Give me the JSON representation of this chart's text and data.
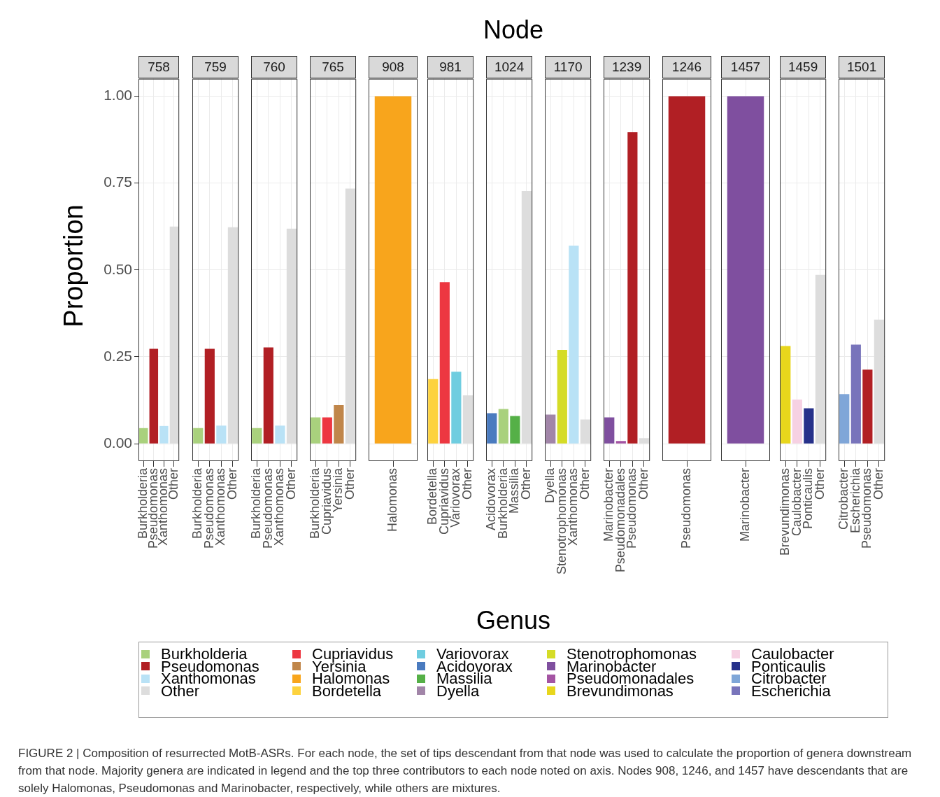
{
  "chart_data": [
    {
      "type": "bar",
      "title": "758",
      "annotations": [
        "Node",
        "FIGURE 2 | Composition of resurrected MotB-ASRs. For each node, the set of tips descendant from that node was used to calculate the proportion of genera downstream from that node. Majority genera are indicated in legend and the top three contributors to each node noted on axis. Nodes 908, 1246, and 1457 have descendants that are solely Halomonas, Pseudomonas and Marinobacter, respectively, while others are mixtures."
      ],
      "ylabel": "Proportion",
      "legend": "bottom",
      "legend_title": "Genus",
      "grid": true,
      "ylim": [
        -0.05,
        1.05
      ],
      "yticks": [
        {
          "value": 0,
          "label": "0.00"
        },
        {
          "value": 0.25,
          "label": "0.25"
        },
        {
          "value": 0.5,
          "label": "0.50"
        },
        {
          "value": 0.75,
          "label": "0.75"
        },
        {
          "value": 1,
          "label": "1.00"
        }
      ],
      "categories": [
        "Burkholderia",
        "Pseudomonas",
        "Xanthomonas",
        "Other"
      ],
      "series": [
        {
          "name": "Burkholderia",
          "color": "#a9d17d",
          "values": [
            0.045,
            null,
            null,
            null
          ]
        },
        {
          "name": "Pseudomonas",
          "color": "#b11f24",
          "values": [
            null,
            0.273,
            null,
            null
          ]
        },
        {
          "name": "Xanthomonas",
          "color": "#b9e2f6",
          "values": [
            null,
            null,
            0.051,
            null
          ]
        },
        {
          "name": "Other",
          "color": "#dddddd",
          "values": [
            null,
            null,
            null,
            0.625
          ]
        }
      ]
    },
    {
      "type": "bar",
      "title": "759",
      "legend": "bottom",
      "grid": true,
      "tick_labels": "x",
      "ylim": [
        -0.05,
        1.05
      ],
      "yticks": [
        0,
        0.25,
        0.5,
        0.75,
        1
      ],
      "categories": [
        "Burkholderia",
        "Pseudomonas",
        "Xanthomonas",
        "Other"
      ],
      "series": [
        {
          "name": "Burkholderia",
          "color": "#a9d17d",
          "values": [
            0.045,
            null,
            null,
            null
          ]
        },
        {
          "name": "Pseudomonas",
          "color": "#b11f24",
          "values": [
            null,
            0.273,
            null,
            null
          ]
        },
        {
          "name": "Xanthomonas",
          "color": "#b9e2f6",
          "values": [
            null,
            null,
            0.052,
            null
          ]
        },
        {
          "name": "Other",
          "color": "#dddddd",
          "values": [
            null,
            null,
            null,
            0.623
          ]
        }
      ]
    },
    {
      "type": "bar",
      "title": "760",
      "legend": "bottom",
      "grid": true,
      "tick_labels": "x",
      "ylim": [
        -0.05,
        1.05
      ],
      "yticks": [
        0,
        0.25,
        0.5,
        0.75,
        1
      ],
      "categories": [
        "Burkholderia",
        "Pseudomonas",
        "Xanthomonas",
        "Other"
      ],
      "series": [
        {
          "name": "Burkholderia",
          "color": "#a9d17d",
          "values": [
            0.045,
            null,
            null,
            null
          ]
        },
        {
          "name": "Pseudomonas",
          "color": "#b11f24",
          "values": [
            null,
            0.277,
            null,
            null
          ]
        },
        {
          "name": "Xanthomonas",
          "color": "#b9e2f6",
          "values": [
            null,
            null,
            0.052,
            null
          ]
        },
        {
          "name": "Other",
          "color": "#dddddd",
          "values": [
            null,
            null,
            null,
            0.619
          ]
        }
      ]
    },
    {
      "type": "bar",
      "title": "765",
      "legend": "bottom",
      "grid": true,
      "tick_labels": "x",
      "ylim": [
        -0.05,
        1.05
      ],
      "yticks": [
        0,
        0.25,
        0.5,
        0.75,
        1
      ],
      "categories": [
        "Burkholderia",
        "Cupriavidus",
        "Yersinia",
        "Other"
      ],
      "series": [
        {
          "name": "Burkholderia",
          "color": "#a9d17d",
          "values": [
            0.076,
            null,
            null,
            null
          ]
        },
        {
          "name": "Cupriavidus",
          "color": "#ed3741",
          "values": [
            null,
            0.076,
            null,
            null
          ]
        },
        {
          "name": "Yersinia",
          "color": "#c0864a",
          "values": [
            null,
            null,
            0.111,
            null
          ]
        },
        {
          "name": "Other",
          "color": "#dddddd",
          "values": [
            null,
            null,
            null,
            0.734
          ]
        }
      ]
    },
    {
      "type": "bar",
      "title": "908",
      "legend": "bottom",
      "grid": true,
      "tick_labels": "x",
      "ylim": [
        -0.05,
        1.05
      ],
      "yticks": [
        0,
        0.25,
        0.5,
        0.75,
        1
      ],
      "categories": [
        "Halomonas"
      ],
      "series": [
        {
          "name": "Halomonas",
          "color": "#f8a51c",
          "values": [
            1
          ]
        }
      ]
    },
    {
      "type": "bar",
      "title": "981",
      "legend": "bottom",
      "grid": true,
      "tick_labels": "x",
      "ylim": [
        -0.05,
        1.05
      ],
      "yticks": [
        0,
        0.25,
        0.5,
        0.75,
        1
      ],
      "categories": [
        "Bordetella",
        "Cupriavidus",
        "Variovorax",
        "Other"
      ],
      "series": [
        {
          "name": "Bordetella",
          "color": "#fdd23e",
          "values": [
            0.186,
            null,
            null,
            null
          ]
        },
        {
          "name": "Cupriavidus",
          "color": "#ed3741",
          "values": [
            null,
            0.465,
            null,
            null
          ]
        },
        {
          "name": "Variovorax",
          "color": "#6fcde0",
          "values": [
            null,
            null,
            0.207,
            null
          ]
        },
        {
          "name": "Other",
          "color": "#dddddd",
          "values": [
            null,
            null,
            null,
            0.139
          ]
        }
      ]
    },
    {
      "type": "bar",
      "title": "1024",
      "legend": "bottom",
      "grid": true,
      "tick_labels": "x",
      "ylim": [
        -0.05,
        1.05
      ],
      "yticks": [
        0,
        0.25,
        0.5,
        0.75,
        1
      ],
      "categories": [
        "Acidovorax",
        "Burkholderia",
        "Massilia",
        "Other"
      ],
      "series": [
        {
          "name": "Acidovorax",
          "color": "#4a7bbf",
          "values": [
            0.088,
            null,
            null,
            null
          ]
        },
        {
          "name": "Burkholderia",
          "color": "#a9d17d",
          "values": [
            null,
            0.1,
            null,
            null
          ]
        },
        {
          "name": "Massilia",
          "color": "#55b047",
          "values": [
            null,
            null,
            0.08,
            null
          ]
        },
        {
          "name": "Other",
          "color": "#dddddd",
          "values": [
            null,
            null,
            null,
            0.727
          ]
        }
      ]
    },
    {
      "type": "bar",
      "title": "1170",
      "legend": "bottom",
      "grid": true,
      "tick_labels": "x",
      "ylim": [
        -0.05,
        1.05
      ],
      "yticks": [
        0,
        0.25,
        0.5,
        0.75,
        1
      ],
      "categories": [
        "Dyella",
        "Stenotrophomonas",
        "Xanthomonas",
        "Other"
      ],
      "series": [
        {
          "name": "Dyella",
          "color": "#a185a8",
          "values": [
            0.084,
            null,
            null,
            null
          ]
        },
        {
          "name": "Stenotrophomonas",
          "color": "#d5dc27",
          "values": [
            null,
            0.27,
            null,
            null
          ]
        },
        {
          "name": "Xanthomonas",
          "color": "#b9e2f6",
          "values": [
            null,
            null,
            0.57,
            null
          ]
        },
        {
          "name": "Other",
          "color": "#dddddd",
          "values": [
            null,
            null,
            null,
            0.07
          ]
        }
      ]
    },
    {
      "type": "bar",
      "title": "1239",
      "legend": "bottom",
      "grid": true,
      "tick_labels": "x",
      "ylim": [
        -0.05,
        1.05
      ],
      "yticks": [
        0,
        0.25,
        0.5,
        0.75,
        1
      ],
      "categories": [
        "Marinobacter",
        "Pseudomonadales",
        "Pseudomonas",
        "Other"
      ],
      "series": [
        {
          "name": "Marinobacter",
          "color": "#7f4f9f",
          "values": [
            0.076,
            null,
            null,
            null
          ]
        },
        {
          "name": "Pseudomonadales",
          "color": "#a454a3",
          "values": [
            null,
            0.008,
            null,
            null
          ]
        },
        {
          "name": "Pseudomonas",
          "color": "#b11f24",
          "values": [
            null,
            null,
            0.896,
            null
          ]
        },
        {
          "name": "Other",
          "color": "#dddddd",
          "values": [
            null,
            null,
            null,
            0.016
          ]
        }
      ]
    },
    {
      "type": "bar",
      "title": "1246",
      "grid": true,
      "tick_labels": "x",
      "ylim": [
        -0.05,
        1.05
      ],
      "yticks": [
        0,
        0.25,
        0.5,
        0.75,
        1
      ],
      "categories": [
        "Pseudomonas"
      ],
      "series": [
        {
          "color": "#b11f24",
          "values": [
            1
          ]
        }
      ]
    },
    {
      "type": "bar",
      "title": "1457",
      "grid": true,
      "tick_labels": "x",
      "ylim": [
        -0.05,
        1.05
      ],
      "yticks": [
        0,
        0.25,
        0.5,
        0.75,
        1
      ],
      "categories": [
        "Marinobacter"
      ],
      "series": [
        {
          "color": "#7f4f9f",
          "values": [
            1
          ]
        }
      ]
    },
    {
      "type": "bar",
      "title": "1459",
      "legend": "bottom",
      "grid": true,
      "tick_labels": "x",
      "ylim": [
        -0.05,
        1.05
      ],
      "yticks": [
        0,
        0.25,
        0.5,
        0.75,
        1
      ],
      "categories": [
        "Brevundimonas",
        "Caulobacter",
        "Ponticaulis",
        "Other"
      ],
      "series": [
        {
          "name": "Brevundimonas",
          "color": "#e8d61c",
          "values": [
            0.281,
            null,
            null,
            null
          ]
        },
        {
          "name": "Caulobacter",
          "color": "#f6d1e3",
          "values": [
            null,
            0.127,
            null,
            null
          ]
        },
        {
          "name": "Ponticaulis",
          "color": "#26318a",
          "values": [
            null,
            null,
            0.102,
            null
          ]
        },
        {
          "name": "Other",
          "color": "#dddddd",
          "values": [
            null,
            null,
            null,
            0.486
          ]
        }
      ]
    },
    {
      "type": "bar",
      "title": "1501",
      "legend": "bottom",
      "grid": true,
      "tick_labels": "x",
      "ylim": [
        -0.05,
        1.05
      ],
      "yticks": [
        0,
        0.25,
        0.5,
        0.75,
        1
      ],
      "categories": [
        "Citrobacter",
        "Escherichia",
        "Pseudomonas",
        "Other"
      ],
      "series": [
        {
          "name": "Citrobacter",
          "color": "#7fa6d8",
          "values": [
            0.143,
            null,
            null,
            null
          ]
        },
        {
          "name": "Escherichia",
          "color": "#7874bb",
          "values": [
            null,
            0.285,
            null,
            null
          ]
        },
        {
          "name": "Pseudomonas",
          "color": "#b11f24",
          "values": [
            null,
            null,
            0.213,
            null
          ]
        },
        {
          "name": "Other",
          "color": "#dddddd",
          "values": [
            null,
            null,
            null,
            0.357
          ]
        }
      ]
    }
  ]
}
